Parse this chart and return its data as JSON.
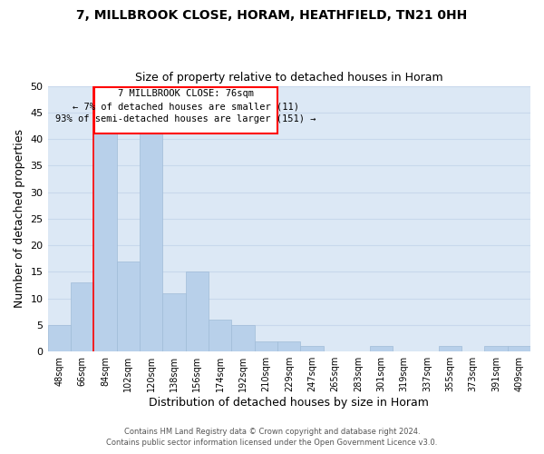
{
  "title": "7, MILLBROOK CLOSE, HORAM, HEATHFIELD, TN21 0HH",
  "subtitle": "Size of property relative to detached houses in Horam",
  "xlabel": "Distribution of detached houses by size in Horam",
  "ylabel": "Number of detached properties",
  "bar_color": "#b8d0ea",
  "bar_edge_color": "#a0bcd8",
  "grid_color": "#c8d8ec",
  "background_color": "#dce8f5",
  "bin_labels": [
    "48sqm",
    "66sqm",
    "84sqm",
    "102sqm",
    "120sqm",
    "138sqm",
    "156sqm",
    "174sqm",
    "192sqm",
    "210sqm",
    "229sqm",
    "247sqm",
    "265sqm",
    "283sqm",
    "301sqm",
    "319sqm",
    "337sqm",
    "355sqm",
    "373sqm",
    "391sqm",
    "409sqm"
  ],
  "bar_heights": [
    5,
    13,
    41,
    17,
    41,
    11,
    15,
    6,
    5,
    2,
    2,
    1,
    0,
    0,
    1,
    0,
    0,
    1,
    0,
    1,
    1
  ],
  "ylim": [
    0,
    50
  ],
  "yticks": [
    0,
    5,
    10,
    15,
    20,
    25,
    30,
    35,
    40,
    45,
    50
  ],
  "annotation_title": "7 MILLBROOK CLOSE: 76sqm",
  "annotation_line1": "← 7% of detached houses are smaller (11)",
  "annotation_line2": "93% of semi-detached houses are larger (151) →",
  "footer1": "Contains HM Land Registry data © Crown copyright and database right 2024.",
  "footer2": "Contains public sector information licensed under the Open Government Licence v3.0."
}
